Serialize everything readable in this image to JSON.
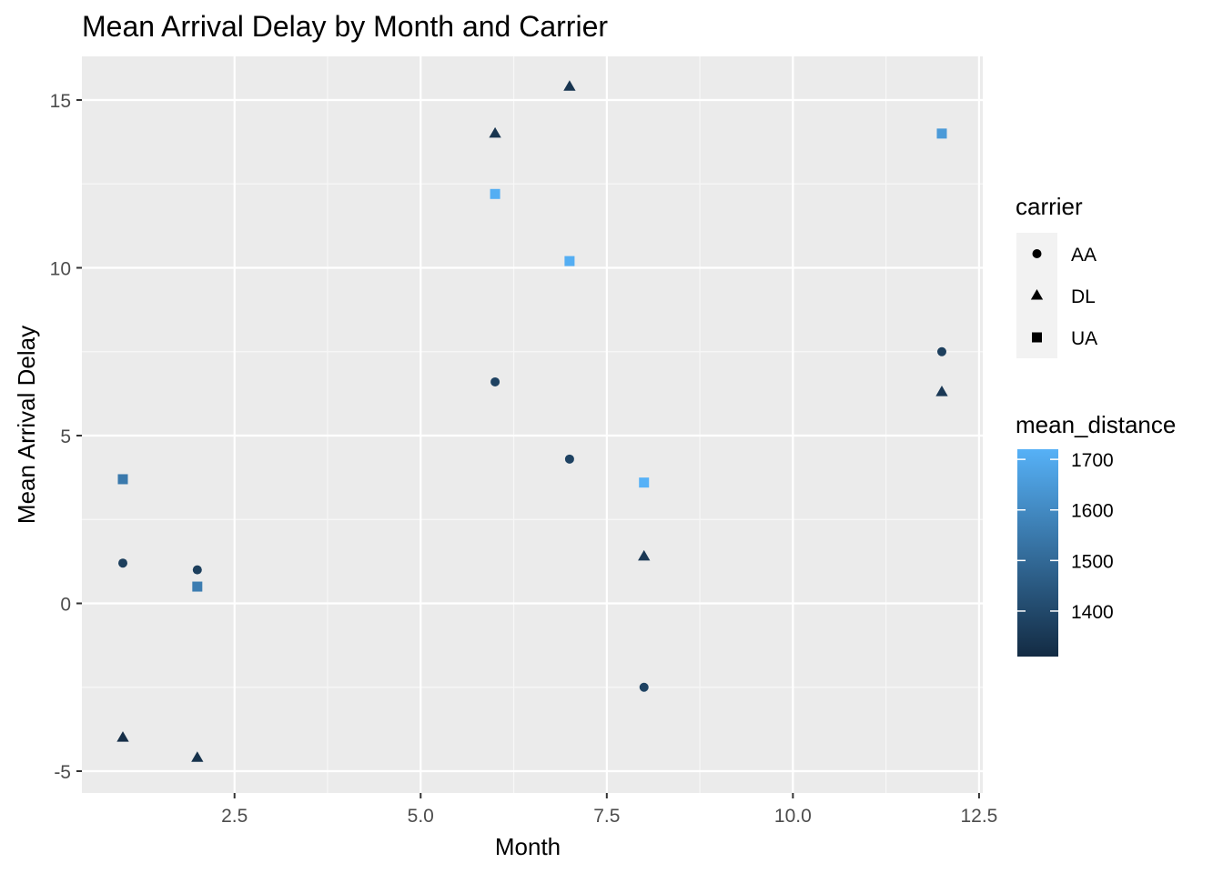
{
  "chart_data": {
    "type": "scatter",
    "title": "Mean Arrival Delay by Month and Carrier",
    "xlabel": "Month",
    "ylabel": "Mean Arrival Delay",
    "xlim": [
      0.45,
      12.55
    ],
    "ylim": [
      -5.65,
      16.3
    ],
    "x_ticks": [
      2.5,
      5.0,
      7.5,
      10.0,
      12.5
    ],
    "x_tick_labels": [
      "2.5",
      "5.0",
      "7.5",
      "10.0",
      "12.5"
    ],
    "y_ticks": [
      -5,
      0,
      5,
      10,
      15
    ],
    "y_tick_labels": [
      "-5",
      "0",
      "5",
      "10",
      "15"
    ],
    "grid": true,
    "legend_position": "right",
    "shape_legend": {
      "title": "carrier",
      "items": [
        {
          "label": "AA",
          "shape": "circle"
        },
        {
          "label": "DL",
          "shape": "triangle"
        },
        {
          "label": "UA",
          "shape": "square"
        }
      ]
    },
    "color_legend": {
      "title": "mean_distance",
      "min": 1310,
      "max": 1720,
      "breaks": [
        1400,
        1500,
        1600,
        1700
      ],
      "break_labels": [
        "1400",
        "1500",
        "1600",
        "1700"
      ],
      "low_color": "#132B43",
      "high_color": "#56B1F7"
    },
    "series": [
      {
        "name": "AA",
        "shape": "circle",
        "points": [
          {
            "x": 1,
            "y": 1.2,
            "mean_distance": 1370
          },
          {
            "x": 2,
            "y": 1.0,
            "mean_distance": 1370
          },
          {
            "x": 6,
            "y": 6.6,
            "mean_distance": 1380
          },
          {
            "x": 7,
            "y": 4.3,
            "mean_distance": 1380
          },
          {
            "x": 8,
            "y": -2.5,
            "mean_distance": 1380
          },
          {
            "x": 12,
            "y": 7.5,
            "mean_distance": 1370
          }
        ]
      },
      {
        "name": "DL",
        "shape": "triangle",
        "points": [
          {
            "x": 1,
            "y": -4.0,
            "mean_distance": 1320
          },
          {
            "x": 2,
            "y": -4.6,
            "mean_distance": 1330
          },
          {
            "x": 6,
            "y": 14.0,
            "mean_distance": 1340
          },
          {
            "x": 7,
            "y": 15.4,
            "mean_distance": 1340
          },
          {
            "x": 8,
            "y": 1.4,
            "mean_distance": 1350
          },
          {
            "x": 12,
            "y": 6.3,
            "mean_distance": 1350
          }
        ]
      },
      {
        "name": "UA",
        "shape": "square",
        "points": [
          {
            "x": 1,
            "y": 3.7,
            "mean_distance": 1550
          },
          {
            "x": 2,
            "y": 0.5,
            "mean_distance": 1560
          },
          {
            "x": 6,
            "y": 12.2,
            "mean_distance": 1710
          },
          {
            "x": 7,
            "y": 10.2,
            "mean_distance": 1710
          },
          {
            "x": 8,
            "y": 3.6,
            "mean_distance": 1720
          },
          {
            "x": 12,
            "y": 14.0,
            "mean_distance": 1650
          }
        ]
      }
    ]
  }
}
